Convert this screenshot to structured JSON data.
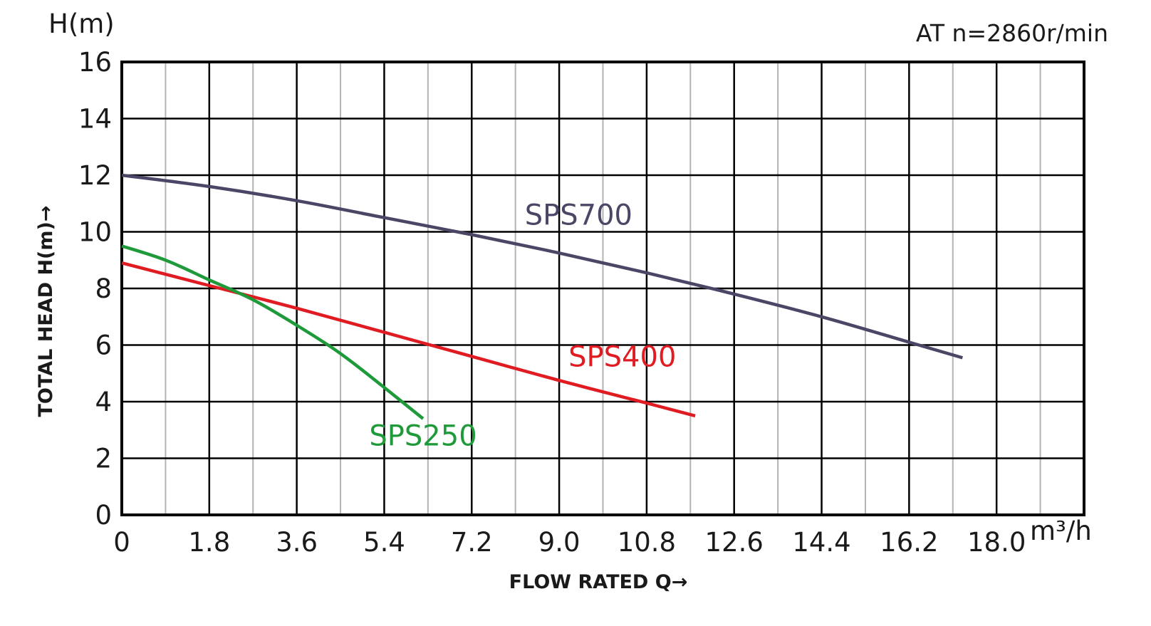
{
  "chart_data": {
    "type": "line",
    "title": "",
    "annotation": "AT n=2860r/min",
    "ylabel": "TOTAL HEAD H(m)→",
    "xlabel": "FLOW RATED Q→",
    "y_unit": "H(m)",
    "x_unit": "m³/h",
    "xlim": [
      0,
      19.8
    ],
    "ylim": [
      0,
      16
    ],
    "x_ticks": [
      0,
      1.8,
      3.6,
      5.4,
      7.2,
      9.0,
      10.8,
      12.6,
      14.4,
      16.2,
      18.0
    ],
    "x_tick_labels": [
      "0",
      "1.8",
      "3.6",
      "5.4",
      "7.2",
      "9.0",
      "10.8",
      "12.6",
      "14.4",
      "16.2",
      "18.0"
    ],
    "y_ticks": [
      0,
      2,
      4,
      6,
      8,
      10,
      12,
      14,
      16
    ],
    "y_tick_labels": [
      "0",
      "2",
      "4",
      "6",
      "8",
      "10",
      "12",
      "14",
      "16"
    ],
    "minor_x_step": 0.9,
    "grid": true,
    "series": [
      {
        "name": "SPS700",
        "color": "#4a4766",
        "label_at": [
          9.4,
          10.6
        ],
        "x": [
          0,
          1.8,
          3.6,
          5.4,
          7.2,
          9.0,
          10.8,
          12.6,
          14.4,
          16.2,
          17.3
        ],
        "y": [
          12.0,
          11.6,
          11.1,
          10.5,
          9.9,
          9.25,
          8.55,
          7.8,
          7.0,
          6.1,
          5.55
        ]
      },
      {
        "name": "SPS400",
        "color": "#e01b22",
        "label_at": [
          10.3,
          5.6
        ],
        "x": [
          0,
          1.8,
          3.6,
          5.4,
          7.2,
          9.0,
          10.8,
          11.8
        ],
        "y": [
          8.9,
          8.1,
          7.3,
          6.45,
          5.6,
          4.75,
          3.95,
          3.5
        ]
      },
      {
        "name": "SPS250",
        "color": "#1f9a3a",
        "label_at": [
          6.2,
          2.8
        ],
        "x": [
          0,
          0.9,
          1.8,
          2.7,
          3.6,
          4.5,
          5.4,
          6.2
        ],
        "y": [
          9.5,
          9.0,
          8.3,
          7.6,
          6.7,
          5.7,
          4.5,
          3.4
        ]
      }
    ]
  }
}
